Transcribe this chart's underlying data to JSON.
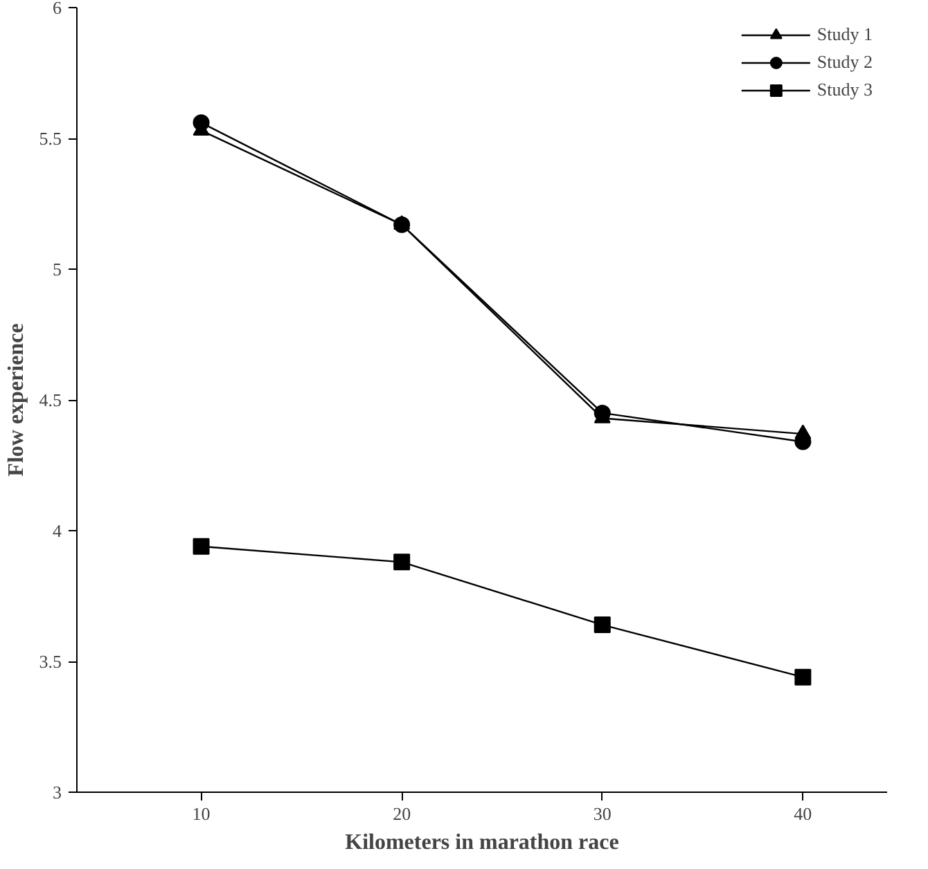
{
  "chart_data": {
    "type": "line",
    "xlabel": "Kilometers in marathon race",
    "ylabel": "Flow experience",
    "x": [
      10,
      20,
      30,
      40
    ],
    "series": [
      {
        "name": "Study 1",
        "color": "#000000",
        "marker": "triangle",
        "values": [
          5.53,
          5.17,
          4.43,
          4.37
        ]
      },
      {
        "name": "Study 2",
        "color": "#000000",
        "marker": "circle",
        "values": [
          5.56,
          5.17,
          4.45,
          4.34
        ]
      },
      {
        "name": "Study 3",
        "color": "#000000",
        "marker": "square",
        "values": [
          3.94,
          3.88,
          3.64,
          3.44
        ]
      }
    ],
    "xlim": [
      3.8,
      44.2
    ],
    "xticks": [
      10,
      20,
      30,
      40
    ],
    "ylim": [
      3,
      6
    ],
    "yticks": [
      3,
      3.5,
      4,
      4.5,
      5,
      5.5,
      6
    ],
    "grid": false,
    "legend": "top right",
    "line_style": "solid"
  }
}
